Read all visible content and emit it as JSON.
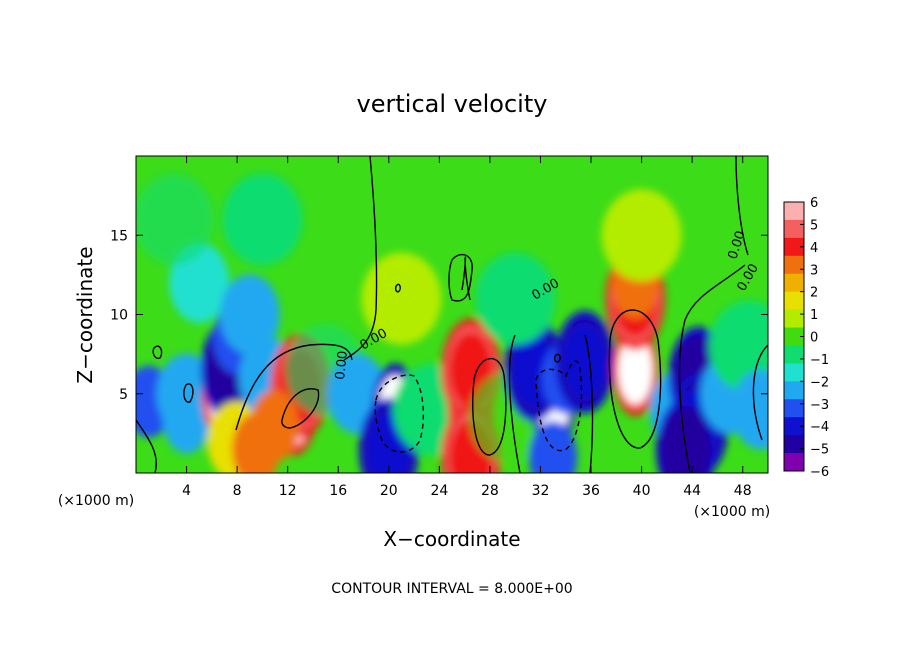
{
  "chart_data": {
    "type": "heatmap",
    "title": "vertical velocity",
    "xlabel": "X−coordinate",
    "ylabel": "Z−coordinate",
    "x_unit_left": "(×1000 m)",
    "x_unit_right": "(×1000 m)",
    "xlim": [
      0,
      50
    ],
    "ylim": [
      0,
      20
    ],
    "x_ticks": [
      4,
      8,
      12,
      16,
      20,
      24,
      28,
      32,
      36,
      40,
      44,
      48
    ],
    "y_ticks": [
      5,
      10,
      15
    ],
    "colorbar": {
      "ticks": [
        6,
        5,
        4,
        3,
        2,
        1,
        0,
        -1,
        -2,
        -3,
        -4,
        -5,
        -6
      ],
      "tick_labels": [
        "6",
        "5",
        "4",
        "3",
        "2",
        "1",
        "0",
        "−1",
        "−2",
        "−3",
        "−4",
        "−5",
        "−6"
      ],
      "colors": [
        "#fbb0b0",
        "#f46060",
        "#f01818",
        "#f07010",
        "#f0b000",
        "#e8e000",
        "#b4ec00",
        "#40dc10",
        "#10dc70",
        "#20e0d0",
        "#20a8f0",
        "#2050f0",
        "#1010d0",
        "#2000a0",
        "#8000b0"
      ]
    },
    "contour_labels": [
      "0.00",
      "0.00",
      "0.00",
      "0.00",
      "0.00"
    ],
    "contour_interval_text": "CONTOUR INTERVAL = 8.000E+00",
    "cells": [
      {
        "x": 1,
        "z": 4.5,
        "w": -3
      },
      {
        "x": 4,
        "z": 3.5,
        "w": -2.5
      },
      {
        "x": 4,
        "z": 5,
        "w": -2
      },
      {
        "x": 5,
        "z": 12,
        "w": -1.5
      },
      {
        "x": 7,
        "z": 5,
        "w": 6
      },
      {
        "x": 7.5,
        "z": 6.5,
        "w": -5
      },
      {
        "x": 8,
        "z": 2,
        "w": 2
      },
      {
        "x": 9.5,
        "z": 1.5,
        "w": 3
      },
      {
        "x": 8,
        "z": 8.5,
        "w": -3
      },
      {
        "x": 9,
        "z": 10,
        "w": -2
      },
      {
        "x": 10.5,
        "z": 6,
        "w": -2
      },
      {
        "x": 12.5,
        "z": 4,
        "w": 6
      },
      {
        "x": 13,
        "z": 5.5,
        "w": 4
      },
      {
        "x": 11,
        "z": 3,
        "w": 3
      },
      {
        "x": 15,
        "z": 6.5,
        "w": -0.5
      },
      {
        "x": 17.5,
        "z": 5,
        "w": -2
      },
      {
        "x": 20.5,
        "z": 4,
        "w": -6
      },
      {
        "x": 20.5,
        "z": 4,
        "w": -6
      },
      {
        "x": 20,
        "z": 1.5,
        "w": -4
      },
      {
        "x": 23.5,
        "z": 4,
        "w": -1
      },
      {
        "x": 26.5,
        "z": 4,
        "w": 6
      },
      {
        "x": 26.5,
        "z": 6.5,
        "w": 4
      },
      {
        "x": 26.5,
        "z": 1,
        "w": 4
      },
      {
        "x": 29.5,
        "z": 3.5,
        "w": 0
      },
      {
        "x": 33,
        "z": 4.5,
        "w": -6
      },
      {
        "x": 31.5,
        "z": 6.5,
        "w": -4
      },
      {
        "x": 34,
        "z": 6,
        "w": -3
      },
      {
        "x": 33,
        "z": 1,
        "w": -3
      },
      {
        "x": 35.5,
        "z": 7,
        "w": -4
      },
      {
        "x": 30,
        "z": 11,
        "w": -1
      },
      {
        "x": 39.5,
        "z": 6.5,
        "w": 6
      },
      {
        "x": 39.5,
        "z": 11,
        "w": 4
      },
      {
        "x": 39.5,
        "z": 12,
        "w": 3
      },
      {
        "x": 40,
        "z": 15,
        "w": 1
      },
      {
        "x": 43,
        "z": 4,
        "w": -2
      },
      {
        "x": 44.5,
        "z": 6,
        "w": -5
      },
      {
        "x": 44.5,
        "z": 3,
        "w": -4
      },
      {
        "x": 43.5,
        "z": 1.5,
        "w": -5
      },
      {
        "x": 47,
        "z": 5,
        "w": -2
      },
      {
        "x": 48.5,
        "z": 8,
        "w": -1
      },
      {
        "x": 49.5,
        "z": 4,
        "w": -2
      },
      {
        "x": 21,
        "z": 11,
        "w": 1
      },
      {
        "x": 10,
        "z": 16,
        "w": -1
      },
      {
        "x": 3,
        "z": 16,
        "w": -0.5
      }
    ]
  }
}
